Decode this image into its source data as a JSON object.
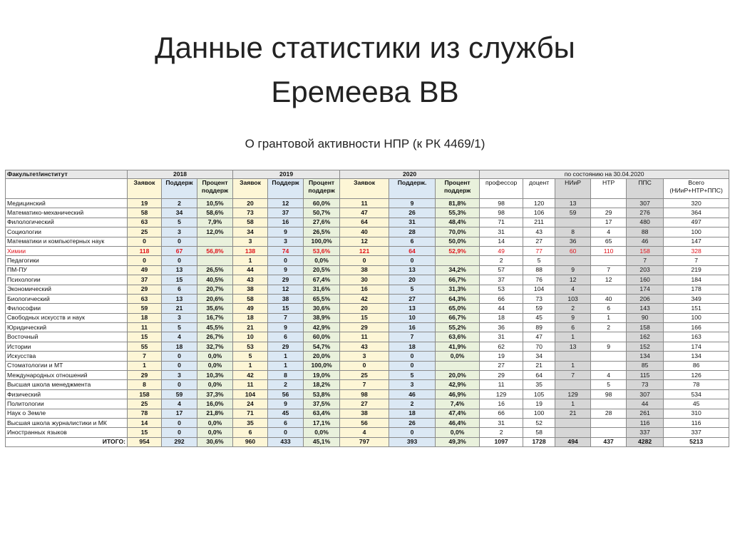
{
  "title_lines": [
    "Данные статистики из службы",
    "Еремеева ВВ"
  ],
  "subtitle": "О грантовой активности НПР (к РК 4469/1)",
  "table": {
    "group_headers": [
      "Факультет/институт",
      "2018",
      "2019",
      "2020",
      "по состоянию на 30.04.2020"
    ],
    "sub_headers": [
      "Заявок",
      "Поддерж",
      "Процент поддерж",
      "Заявок",
      "Поддерж",
      "Процент поддерж",
      "Заявок",
      "Поддерж.",
      "Процент поддерж",
      "профессор",
      "доцент",
      "НИиР",
      "НТР",
      "ППС",
      "Всего (НИиР+НТР+ППС)"
    ],
    "rows": [
      [
        "Медицинский",
        "19",
        "2",
        "10,5%",
        "20",
        "12",
        "60,0%",
        "11",
        "9",
        "81,8%",
        "98",
        "120",
        "13",
        null,
        "307",
        "320"
      ],
      [
        "Математико-механический",
        "58",
        "34",
        "58,6%",
        "73",
        "37",
        "50,7%",
        "47",
        "26",
        "55,3%",
        "98",
        "106",
        "59",
        "29",
        "276",
        "364"
      ],
      [
        "Филологический",
        "63",
        "5",
        "7,9%",
        "58",
        "16",
        "27,6%",
        "64",
        "31",
        "48,4%",
        "71",
        "211",
        null,
        "17",
        "480",
        "497"
      ],
      [
        "Социологии",
        "25",
        "3",
        "12,0%",
        "34",
        "9",
        "26,5%",
        "40",
        "28",
        "70,0%",
        "31",
        "43",
        "8",
        "4",
        "88",
        "100"
      ],
      [
        "Математики и компьютерных наук",
        "0",
        "0",
        null,
        "3",
        "3",
        "100,0%",
        "12",
        "6",
        "50,0%",
        "14",
        "27",
        "36",
        "65",
        "46",
        "147"
      ],
      [
        "Химии",
        "118",
        "67",
        "56,8%",
        "138",
        "74",
        "53,6%",
        "121",
        "64",
        "52,9%",
        "49",
        "77",
        "60",
        "110",
        "158",
        "328"
      ],
      [
        "Педагогики",
        "0",
        "0",
        null,
        "1",
        "0",
        "0,0%",
        "0",
        "0",
        null,
        "2",
        "5",
        null,
        null,
        "7",
        "7"
      ],
      [
        "ПМ-ПУ",
        "49",
        "13",
        "26,5%",
        "44",
        "9",
        "20,5%",
        "38",
        "13",
        "34,2%",
        "57",
        "88",
        "9",
        "7",
        "203",
        "219"
      ],
      [
        "Психологии",
        "37",
        "15",
        "40,5%",
        "43",
        "29",
        "67,4%",
        "30",
        "20",
        "66,7%",
        "37",
        "76",
        "12",
        "12",
        "160",
        "184"
      ],
      [
        "Экономический",
        "29",
        "6",
        "20,7%",
        "38",
        "12",
        "31,6%",
        "16",
        "5",
        "31,3%",
        "53",
        "104",
        "4",
        null,
        "174",
        "178"
      ],
      [
        "Биологический",
        "63",
        "13",
        "20,6%",
        "58",
        "38",
        "65,5%",
        "42",
        "27",
        "64,3%",
        "66",
        "73",
        "103",
        "40",
        "206",
        "349"
      ],
      [
        "Философии",
        "59",
        "21",
        "35,6%",
        "49",
        "15",
        "30,6%",
        "20",
        "13",
        "65,0%",
        "44",
        "59",
        "2",
        "6",
        "143",
        "151"
      ],
      [
        "Свободных искусств и наук",
        "18",
        "3",
        "16,7%",
        "18",
        "7",
        "38,9%",
        "15",
        "10",
        "66,7%",
        "18",
        "45",
        "9",
        "1",
        "90",
        "100"
      ],
      [
        "Юридический",
        "11",
        "5",
        "45,5%",
        "21",
        "9",
        "42,9%",
        "29",
        "16",
        "55,2%",
        "36",
        "89",
        "6",
        "2",
        "158",
        "166"
      ],
      [
        "Восточный",
        "15",
        "4",
        "26,7%",
        "10",
        "6",
        "60,0%",
        "11",
        "7",
        "63,6%",
        "31",
        "47",
        "1",
        null,
        "162",
        "163"
      ],
      [
        "Истории",
        "55",
        "18",
        "32,7%",
        "53",
        "29",
        "54,7%",
        "43",
        "18",
        "41,9%",
        "62",
        "70",
        "13",
        "9",
        "152",
        "174"
      ],
      [
        "Искусства",
        "7",
        "0",
        "0,0%",
        "5",
        "1",
        "20,0%",
        "3",
        "0",
        "0,0%",
        "19",
        "34",
        null,
        null,
        "134",
        "134"
      ],
      [
        "Стоматологии и МТ",
        "1",
        "0",
        "0,0%",
        "1",
        "1",
        "100,0%",
        "0",
        "0",
        null,
        "27",
        "21",
        "1",
        null,
        "85",
        "86"
      ],
      [
        "Международных отношений",
        "29",
        "3",
        "10,3%",
        "42",
        "8",
        "19,0%",
        "25",
        "5",
        "20,0%",
        "29",
        "64",
        "7",
        "4",
        "115",
        "126"
      ],
      [
        "Высшая школа менеджмента",
        "8",
        "0",
        "0,0%",
        "11",
        "2",
        "18,2%",
        "7",
        "3",
        "42,9%",
        "11",
        "35",
        null,
        "5",
        "73",
        "78"
      ],
      [
        "Физический",
        "158",
        "59",
        "37,3%",
        "104",
        "56",
        "53,8%",
        "98",
        "46",
        "46,9%",
        "129",
        "105",
        "129",
        "98",
        "307",
        "534"
      ],
      [
        "Политологии",
        "25",
        "4",
        "16,0%",
        "24",
        "9",
        "37,5%",
        "27",
        "2",
        "7,4%",
        "16",
        "19",
        "1",
        null,
        "44",
        "45"
      ],
      [
        "Наук о Земле",
        "78",
        "17",
        "21,8%",
        "71",
        "45",
        "63,4%",
        "38",
        "18",
        "47,4%",
        "66",
        "100",
        "21",
        "28",
        "261",
        "310"
      ],
      [
        "Высшая школа журналистики и МК",
        "14",
        "0",
        "0,0%",
        "35",
        "6",
        "17,1%",
        "56",
        "26",
        "46,4%",
        "31",
        "52",
        null,
        null,
        "116",
        "116"
      ],
      [
        "Иностранных языков",
        "15",
        "0",
        "0,0%",
        "6",
        "0",
        "0,0%",
        "4",
        "0",
        "0,0%",
        "2",
        "58",
        null,
        null,
        "337",
        "337"
      ]
    ],
    "total_row": [
      "ИТОГО:",
      "954",
      "292",
      "30,6%",
      "960",
      "433",
      "45,1%",
      "797",
      "393",
      "49,3%",
      "1097",
      "1728",
      "494",
      "437",
      "4282",
      "5213"
    ]
  }
}
